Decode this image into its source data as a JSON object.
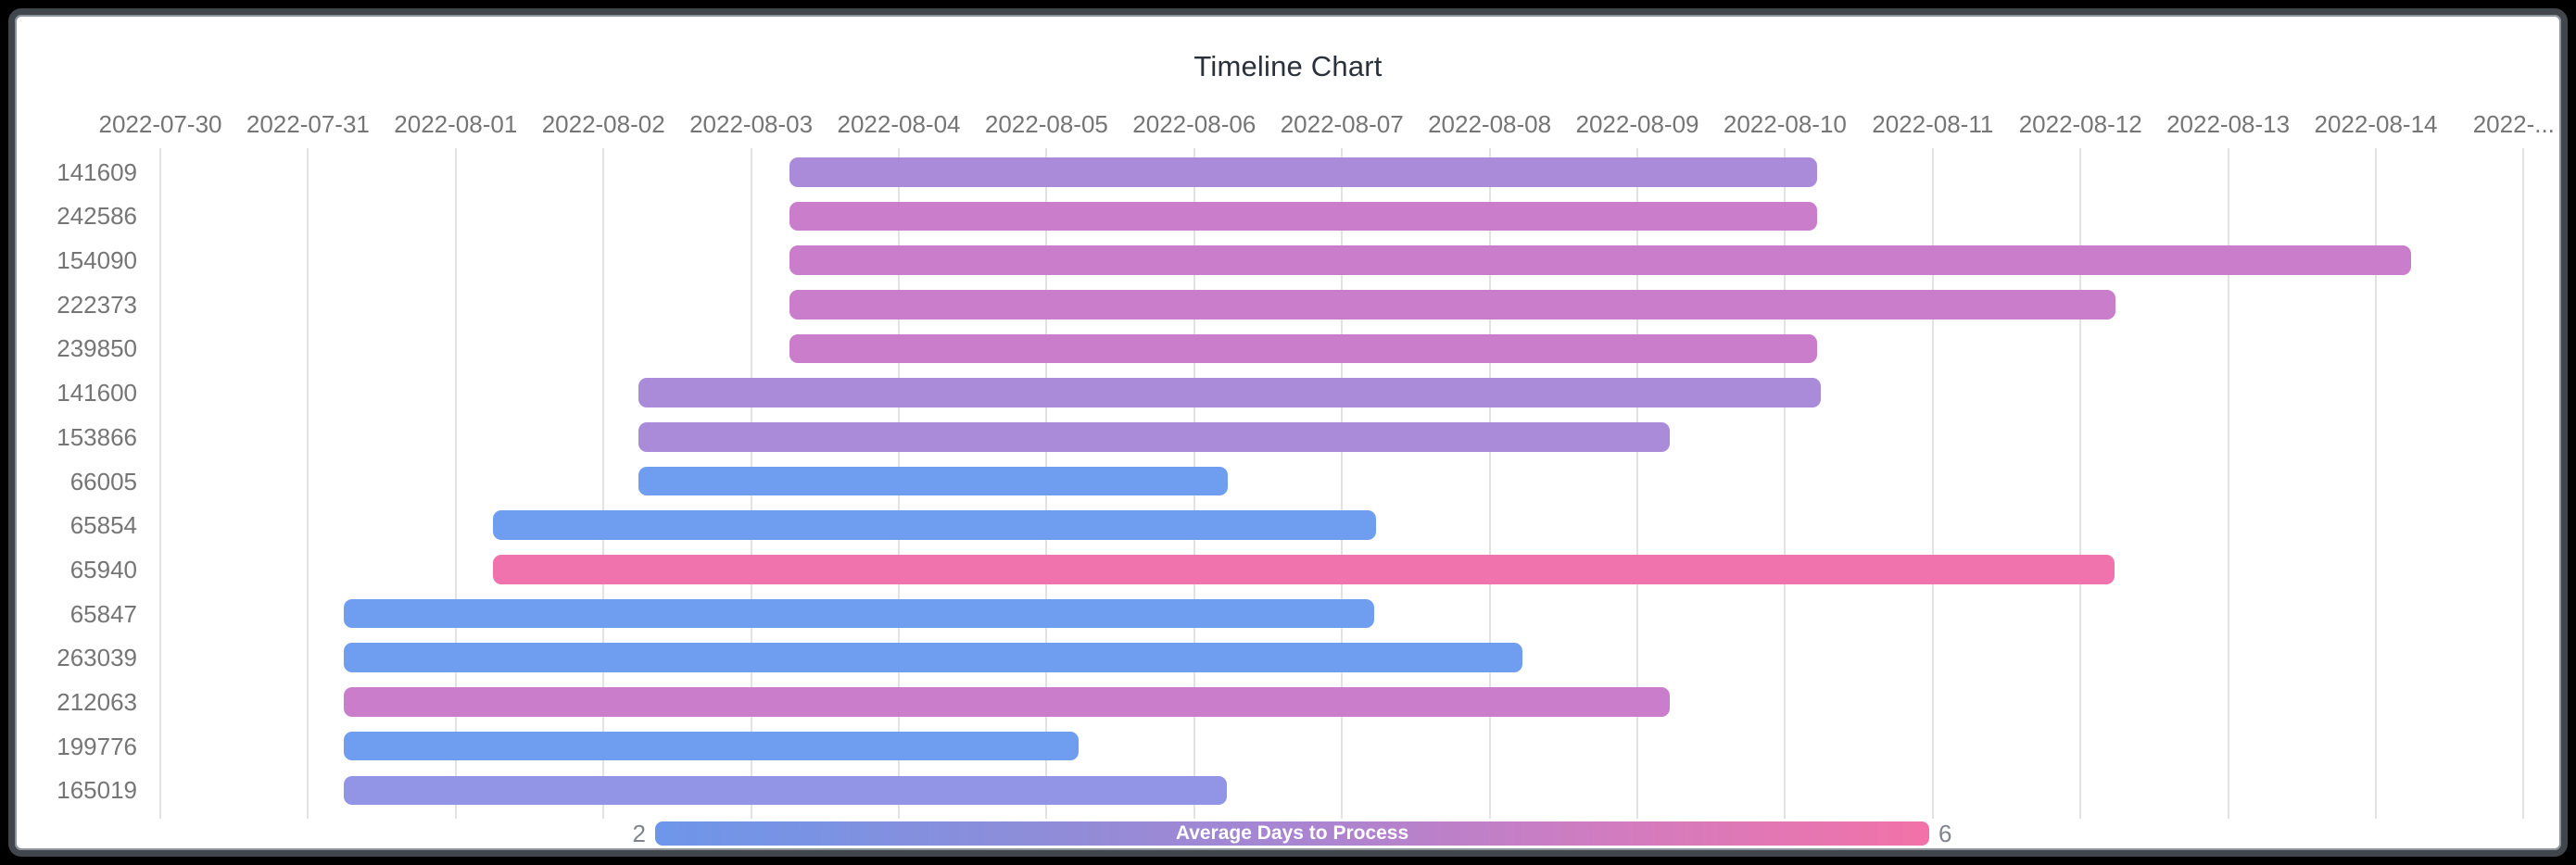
{
  "window": {
    "background": "#000000",
    "panel_border_color": "#41464d",
    "panel_background": "#ffffff"
  },
  "title": "Timeline Chart",
  "chart_data": {
    "type": "timeline",
    "title": "Timeline Chart",
    "x_axis": {
      "position": "top",
      "start_date": "2022-07-30",
      "interval_days": 1,
      "tick_labels": [
        "2022-07-30",
        "2022-07-31",
        "2022-08-01",
        "2022-08-02",
        "2022-08-03",
        "2022-08-04",
        "2022-08-05",
        "2022-08-06",
        "2022-08-07",
        "2022-08-08",
        "2022-08-09",
        "2022-08-10",
        "2022-08-11",
        "2022-08-12",
        "2022-08-13",
        "2022-08-14",
        "2022-..."
      ],
      "grid": true
    },
    "rows": [
      {
        "id": "141609",
        "start_day": 4.26,
        "end_day": 11.22,
        "duration_days": 7.0,
        "color": "#a98bd9",
        "avg_days_to_process": 4
      },
      {
        "id": "242586",
        "start_day": 4.26,
        "end_day": 11.22,
        "duration_days": 7.0,
        "color": "#ca7dcb",
        "avg_days_to_process": 5
      },
      {
        "id": "154090",
        "start_day": 4.26,
        "end_day": 15.24,
        "duration_days": 11.0,
        "color": "#ca7dcb",
        "avg_days_to_process": 5
      },
      {
        "id": "222373",
        "start_day": 4.26,
        "end_day": 13.24,
        "duration_days": 9.0,
        "color": "#ca7dcb",
        "avg_days_to_process": 5
      },
      {
        "id": "239850",
        "start_day": 4.26,
        "end_day": 11.22,
        "duration_days": 7.0,
        "color": "#ca7dcb",
        "avg_days_to_process": 5
      },
      {
        "id": "141600",
        "start_day": 3.24,
        "end_day": 11.24,
        "duration_days": 8.0,
        "color": "#a98bd9",
        "avg_days_to_process": 4
      },
      {
        "id": "153866",
        "start_day": 3.24,
        "end_day": 10.22,
        "duration_days": 7.0,
        "color": "#a98bd9",
        "avg_days_to_process": 4
      },
      {
        "id": "66005",
        "start_day": 3.24,
        "end_day": 7.23,
        "duration_days": 4.0,
        "color": "#6f9ef0",
        "avg_days_to_process": 2
      },
      {
        "id": "65854",
        "start_day": 2.25,
        "end_day": 8.23,
        "duration_days": 6.0,
        "color": "#6f9ef0",
        "avg_days_to_process": 2
      },
      {
        "id": "65940",
        "start_day": 2.25,
        "end_day": 13.23,
        "duration_days": 11.0,
        "color": "#f173ad",
        "avg_days_to_process": 6
      },
      {
        "id": "65847",
        "start_day": 1.24,
        "end_day": 8.22,
        "duration_days": 7.0,
        "color": "#6f9ef0",
        "avg_days_to_process": 2
      },
      {
        "id": "263039",
        "start_day": 1.24,
        "end_day": 9.22,
        "duration_days": 8.0,
        "color": "#6f9ef0",
        "avg_days_to_process": 2
      },
      {
        "id": "212063",
        "start_day": 1.24,
        "end_day": 10.22,
        "duration_days": 9.0,
        "color": "#ca7dcb",
        "avg_days_to_process": 5
      },
      {
        "id": "199776",
        "start_day": 1.24,
        "end_day": 6.22,
        "duration_days": 5.0,
        "color": "#6f9ef0",
        "avg_days_to_process": 2
      },
      {
        "id": "165019",
        "start_day": 1.24,
        "end_day": 7.22,
        "duration_days": 6.0,
        "color": "#9294e5",
        "avg_days_to_process": 3
      }
    ],
    "legend": {
      "label": "Average Days to Process",
      "min_label": "2",
      "max_label": "6",
      "gradient_stops": [
        "#6d96ea 0%",
        "#8e8dd9 30%",
        "#ab84d0 52%",
        "#d17cc0 75%",
        "#f272a8 100%"
      ]
    }
  }
}
